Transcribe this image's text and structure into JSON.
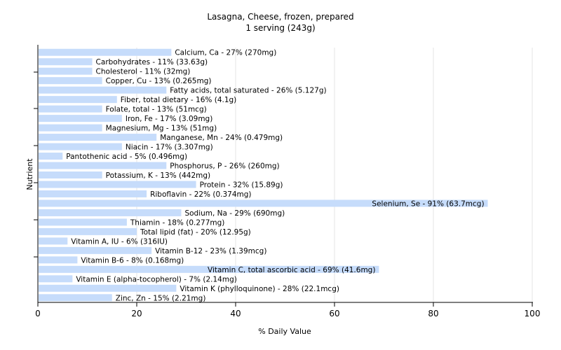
{
  "chart_data": {
    "type": "bar",
    "orientation": "horizontal",
    "title": "Lasagna, Cheese, frozen, prepared",
    "subtitle": "1 serving (243g)",
    "xlabel": "% Daily Value",
    "ylabel": "Nutrient",
    "xlim": [
      0,
      100
    ],
    "xticks": [
      0,
      20,
      40,
      60,
      80,
      100
    ],
    "grid": true,
    "legend": "none",
    "bar_color": "#c6dcfb",
    "categories": [
      "Calcium, Ca",
      "Carbohydrates",
      "Cholesterol",
      "Copper, Cu",
      "Fatty acids, total saturated",
      "Fiber, total dietary",
      "Folate, total",
      "Iron, Fe",
      "Magnesium, Mg",
      "Manganese, Mn",
      "Niacin",
      "Pantothenic acid",
      "Phosphorus, P",
      "Potassium, K",
      "Protein",
      "Riboflavin",
      "Selenium, Se",
      "Sodium, Na",
      "Thiamin",
      "Total lipid (fat)",
      "Vitamin A, IU",
      "Vitamin B-12",
      "Vitamin B-6",
      "Vitamin C, total ascorbic acid",
      "Vitamin E (alpha-tocopherol)",
      "Vitamin K (phylloquinone)",
      "Zinc, Zn"
    ],
    "values": [
      27,
      11,
      11,
      13,
      26,
      16,
      13,
      17,
      13,
      24,
      17,
      5,
      26,
      13,
      32,
      22,
      91,
      29,
      18,
      20,
      6,
      23,
      8,
      69,
      7,
      28,
      15
    ],
    "data_labels": [
      "Calcium, Ca - 27% (270mg)",
      "Carbohydrates - 11% (33.63g)",
      "Cholesterol - 11% (32mg)",
      "Copper, Cu - 13% (0.265mg)",
      "Fatty acids, total saturated - 26% (5.127g)",
      "Fiber, total dietary - 16% (4.1g)",
      "Folate, total - 13% (51mcg)",
      "Iron, Fe - 17% (3.09mg)",
      "Magnesium, Mg - 13% (51mg)",
      "Manganese, Mn - 24% (0.479mg)",
      "Niacin - 17% (3.307mg)",
      "Pantothenic acid - 5% (0.496mg)",
      "Phosphorus, P - 26% (260mg)",
      "Potassium, K - 13% (442mg)",
      "Protein - 32% (15.89g)",
      "Riboflavin - 22% (0.374mg)",
      "Selenium, Se - 91% (63.7mcg)",
      "Sodium, Na - 29% (690mg)",
      "Thiamin - 18% (0.277mg)",
      "Total lipid (fat) - 20% (12.95g)",
      "Vitamin A, IU - 6% (316IU)",
      "Vitamin B-12 - 23% (1.39mcg)",
      "Vitamin B-6 - 8% (0.168mg)",
      "Vitamin C, total ascorbic acid - 69% (41.6mg)",
      "Vitamin E (alpha-tocopherol) - 7% (2.14mg)",
      "Vitamin K (phylloquinone) - 28% (22.1mcg)",
      "Zinc, Zn - 15% (2.21mg)"
    ]
  }
}
